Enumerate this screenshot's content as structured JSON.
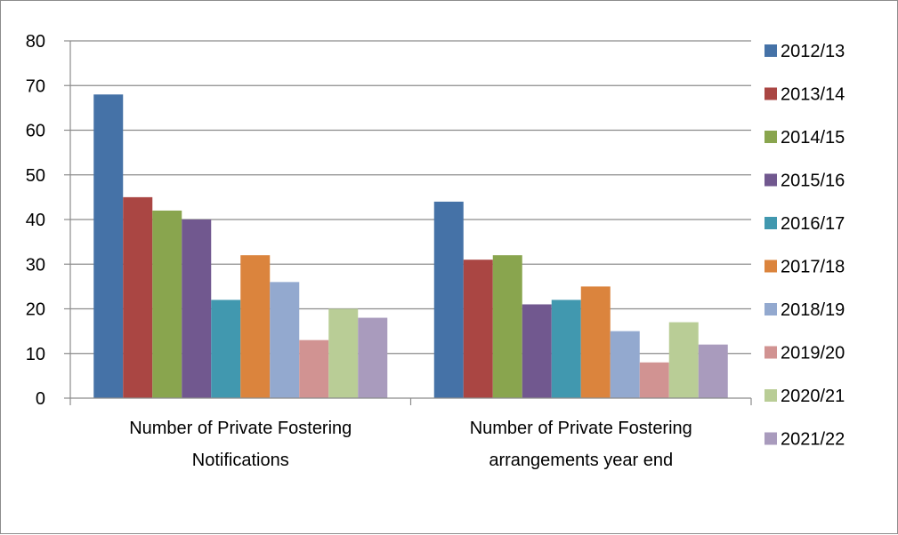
{
  "chart_data": {
    "type": "bar",
    "categories": [
      [
        "Number of Private Fostering",
        "Notifications"
      ],
      [
        "Number of Private Fostering",
        "arrangements year end"
      ]
    ],
    "series": [
      {
        "name": "2012/13",
        "color": "#4572A7",
        "values": [
          68,
          44
        ]
      },
      {
        "name": "2013/14",
        "color": "#AA4643",
        "values": [
          45,
          31
        ]
      },
      {
        "name": "2014/15",
        "color": "#89A54E",
        "values": [
          42,
          32
        ]
      },
      {
        "name": "2015/16",
        "color": "#71588F",
        "values": [
          40,
          21
        ]
      },
      {
        "name": "2016/17",
        "color": "#4198AF",
        "values": [
          22,
          22
        ]
      },
      {
        "name": "2017/18",
        "color": "#DB843D",
        "values": [
          32,
          25
        ]
      },
      {
        "name": "2018/19",
        "color": "#93A9CF",
        "values": [
          26,
          15
        ]
      },
      {
        "name": "2019/20",
        "color": "#D19392",
        "values": [
          13,
          8
        ]
      },
      {
        "name": "2020/21",
        "color": "#B9CD96",
        "values": [
          20,
          17
        ]
      },
      {
        "name": "2021/22",
        "color": "#A99BBD",
        "values": [
          18,
          12
        ]
      }
    ],
    "yticks": [
      0,
      10,
      20,
      30,
      40,
      50,
      60,
      70,
      80
    ],
    "ylim": [
      0,
      80
    ],
    "grid": true,
    "legend_position": "right",
    "title": "",
    "xlabel": "",
    "ylabel": ""
  }
}
